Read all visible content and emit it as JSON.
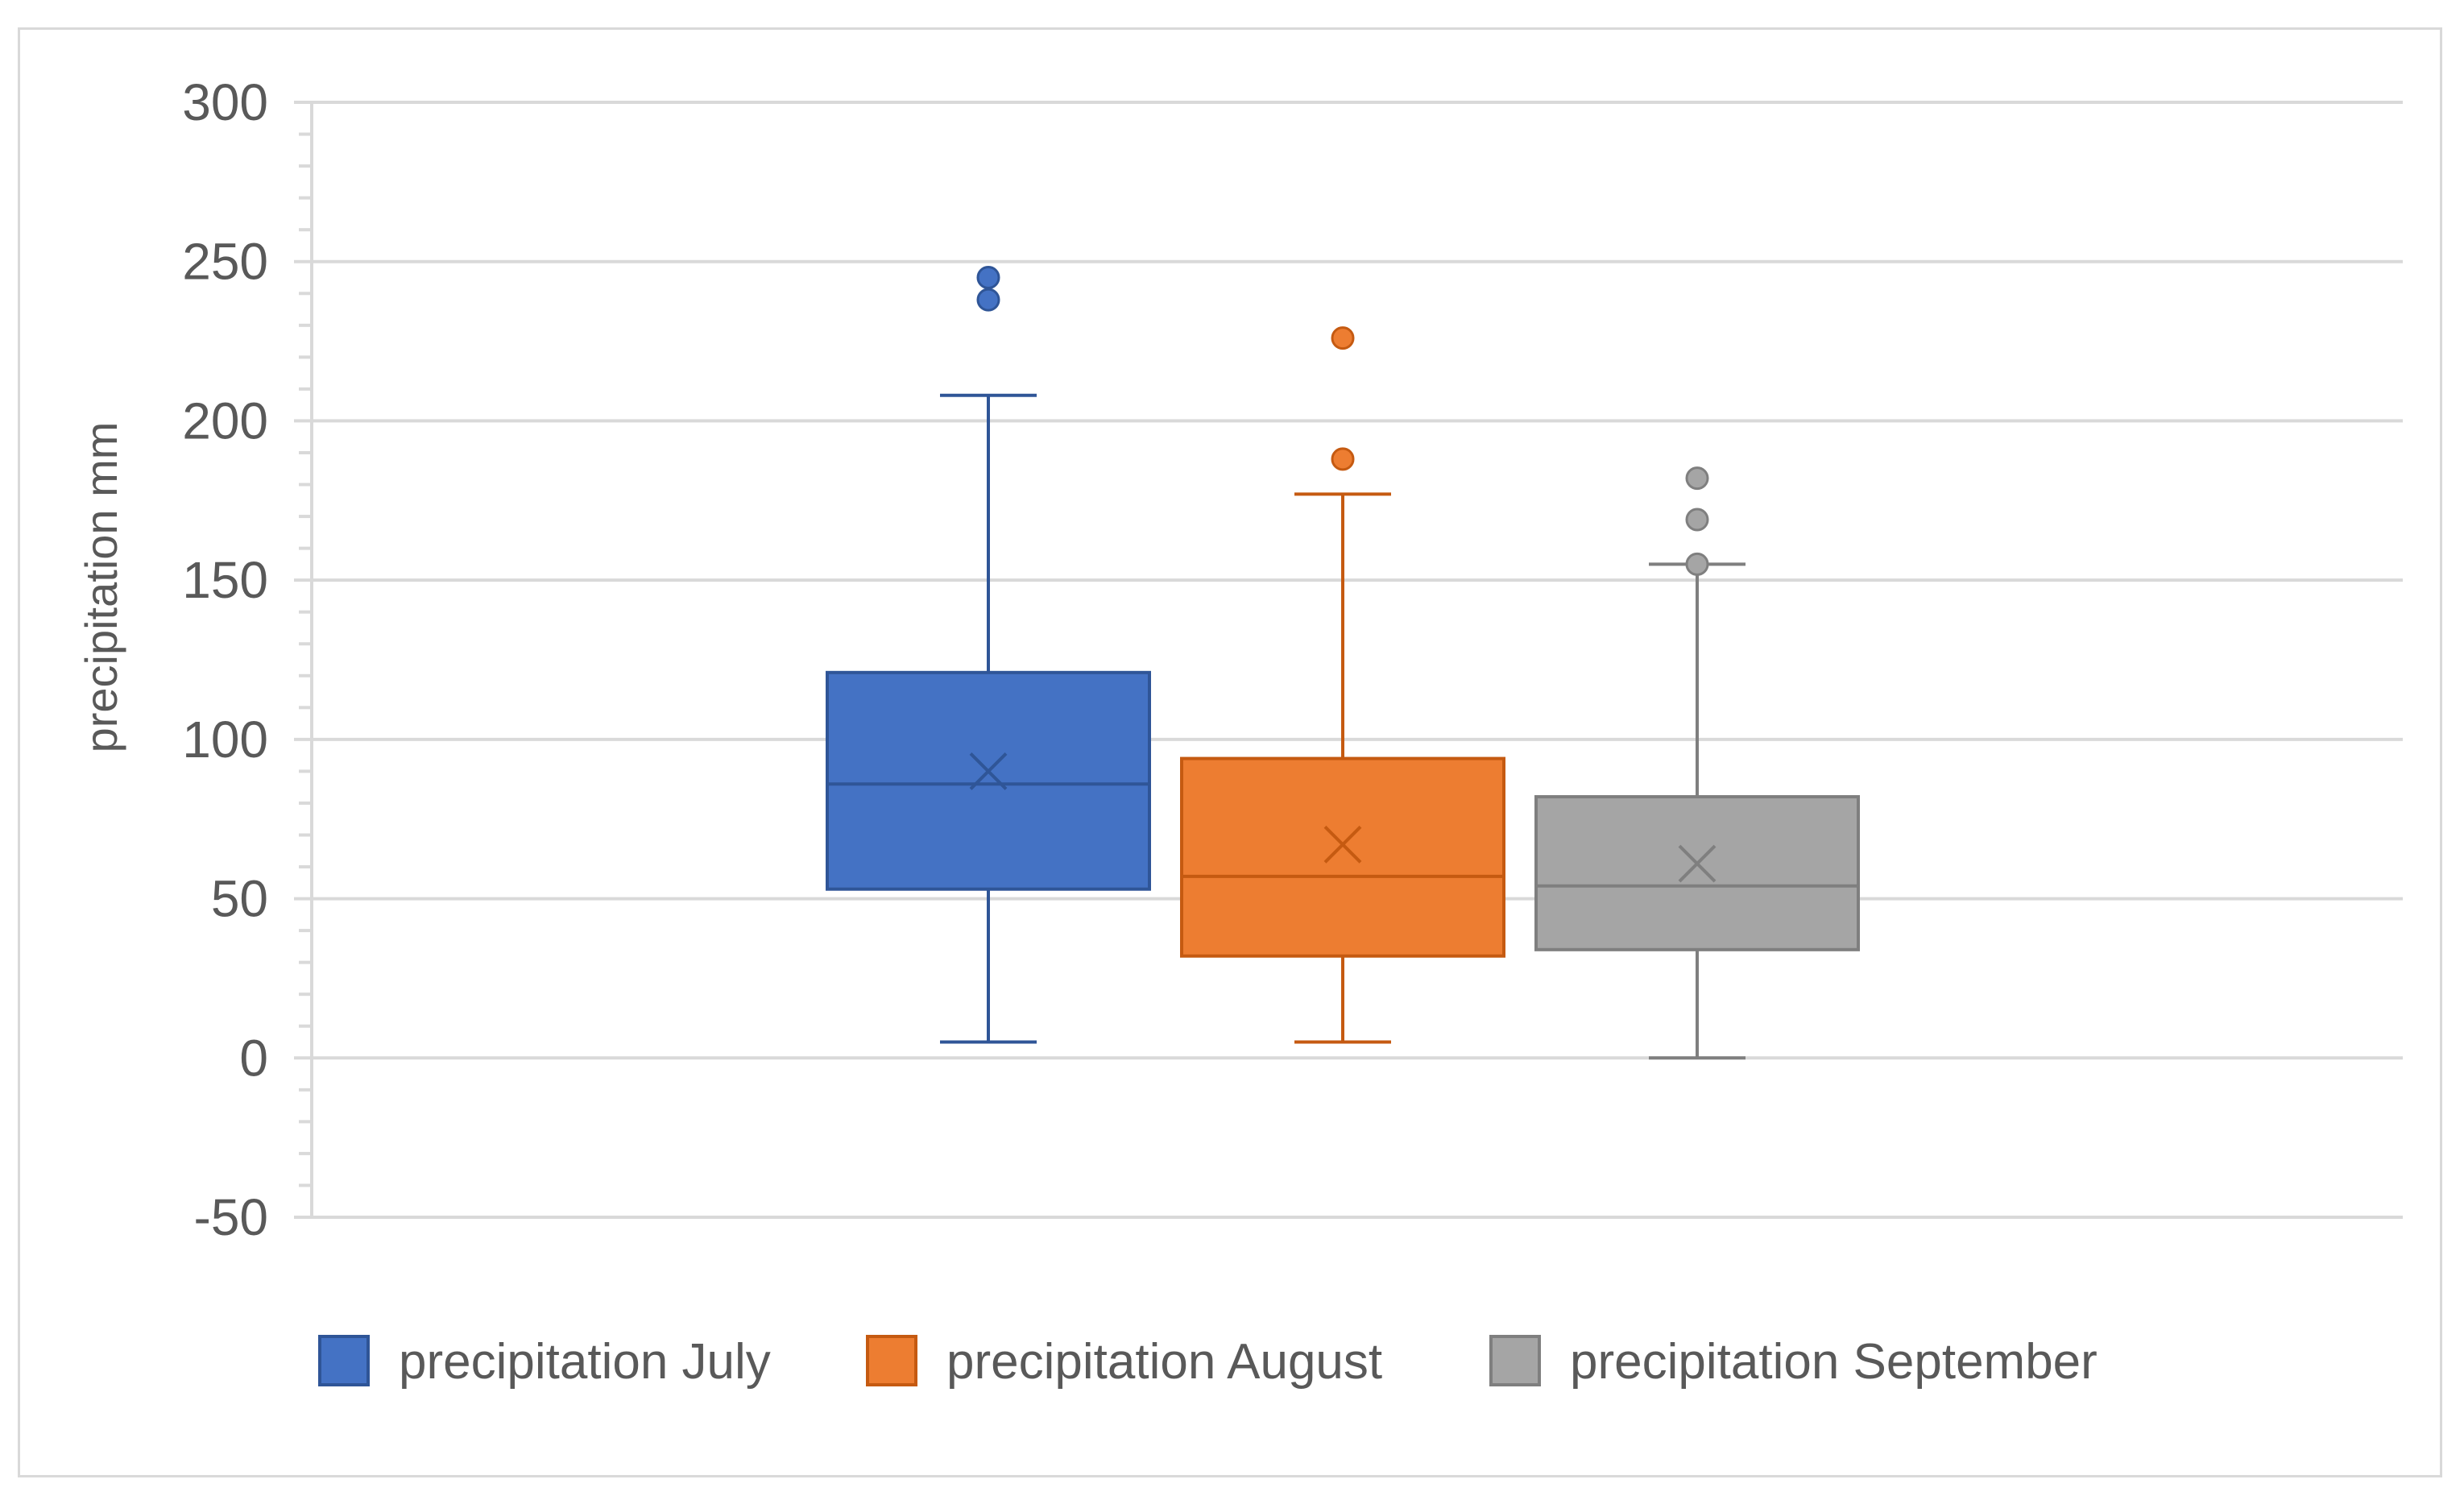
{
  "chart_data": {
    "type": "box",
    "title": "",
    "xlabel": "",
    "ylabel": "precipitation mm",
    "ylim": [
      -50,
      300
    ],
    "yticks": [
      -50,
      0,
      50,
      100,
      150,
      200,
      250,
      300
    ],
    "grid": true,
    "legend_position": "bottom",
    "series": [
      {
        "name": "precipitation July",
        "color": "#4472C4",
        "stroke": "#2F5597",
        "min": 5,
        "q1": 53,
        "median": 86,
        "q3": 121,
        "max": 208,
        "mean": 90,
        "outliers": [
          238,
          245
        ]
      },
      {
        "name": "precipitation August",
        "color": "#ED7D31",
        "stroke": "#C55A11",
        "min": 5,
        "q1": 32,
        "median": 57,
        "q3": 94,
        "max": 177,
        "mean": 67,
        "outliers": [
          188,
          226
        ]
      },
      {
        "name": "precipitation September",
        "color": "#A5A5A5",
        "stroke": "#7F7F7F",
        "min": 0,
        "q1": 34,
        "median": 54,
        "q3": 82,
        "max": 155,
        "mean": 61,
        "outliers": [
          155,
          169,
          182
        ]
      }
    ]
  }
}
